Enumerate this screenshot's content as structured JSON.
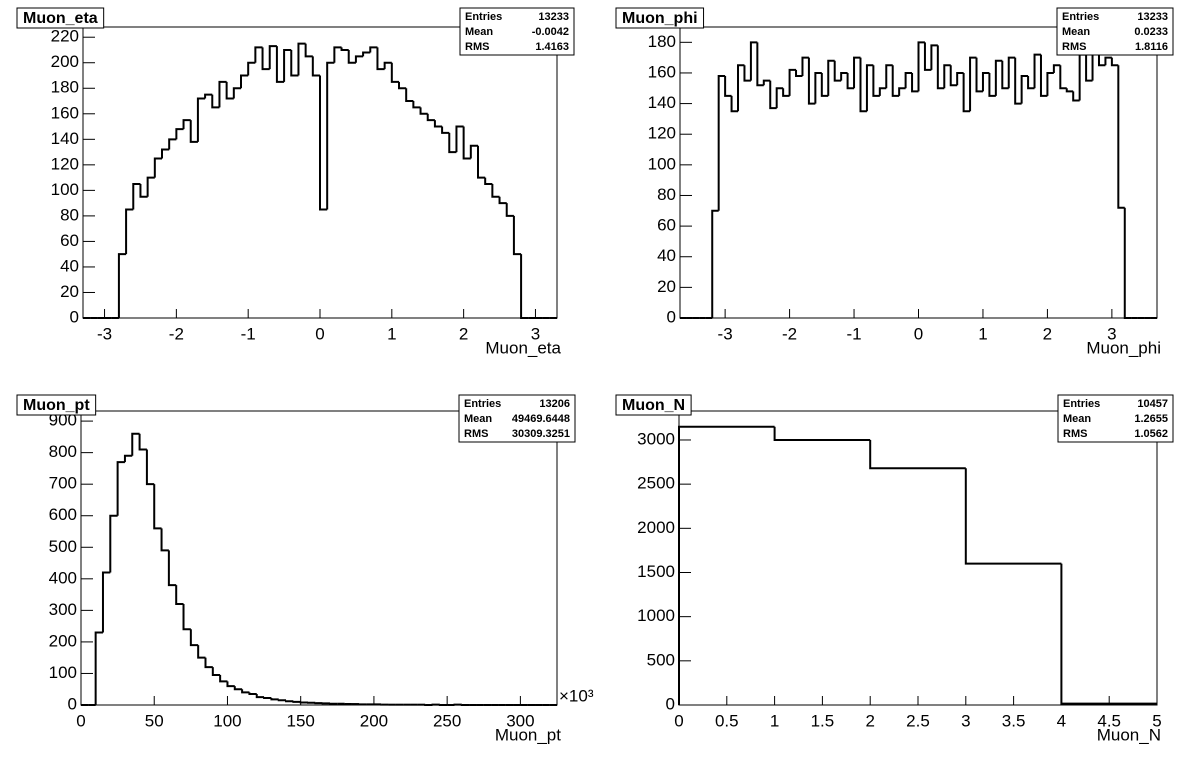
{
  "chart_data": [
    {
      "type": "histogram",
      "title": "Muon_eta",
      "x_label": "Muon_eta",
      "color": "#000000",
      "stats": [
        {
          "label": "Entries",
          "value": 13233
        },
        {
          "label": "Mean",
          "value": -0.0042
        },
        {
          "label": "RMS",
          "value": 1.4163
        }
      ],
      "xlim": [
        -3.3,
        3.3
      ],
      "ylim": [
        0,
        228
      ],
      "xticks": [
        -3,
        -2,
        -1,
        0,
        1,
        2,
        3
      ],
      "yticks": [
        0,
        20,
        40,
        60,
        80,
        100,
        120,
        140,
        160,
        180,
        200,
        220
      ],
      "bins": [
        -3.3,
        -3.2,
        -3.1,
        -3.0,
        -2.9,
        -2.8,
        -2.7,
        -2.6,
        -2.5,
        -2.4,
        -2.3,
        -2.2,
        -2.1,
        -2.0,
        -1.9,
        -1.8,
        -1.7,
        -1.6,
        -1.5,
        -1.4,
        -1.3,
        -1.2,
        -1.1,
        -1.0,
        -0.9,
        -0.8,
        -0.7,
        -0.6,
        -0.5,
        -0.4,
        -0.3,
        -0.2,
        -0.1,
        0.0,
        0.1,
        0.2,
        0.3,
        0.4,
        0.5,
        0.6,
        0.7,
        0.8,
        0.9,
        1.0,
        1.1,
        1.2,
        1.3,
        1.4,
        1.5,
        1.6,
        1.7,
        1.8,
        1.9,
        2.0,
        2.1,
        2.2,
        2.3,
        2.4,
        2.5,
        2.6,
        2.7,
        2.8,
        2.9,
        3.0,
        3.1,
        3.2,
        3.3
      ],
      "values": [
        0,
        0,
        0,
        0,
        0,
        50,
        85,
        105,
        95,
        110,
        125,
        132,
        140,
        148,
        155,
        138,
        172,
        175,
        165,
        185,
        172,
        180,
        190,
        200,
        212,
        195,
        213,
        185,
        210,
        190,
        215,
        205,
        190,
        85,
        200,
        212,
        210,
        200,
        205,
        208,
        212,
        195,
        200,
        185,
        180,
        170,
        165,
        160,
        155,
        150,
        145,
        130,
        150,
        125,
        135,
        110,
        105,
        95,
        90,
        80,
        50,
        0,
        0,
        0,
        0,
        0
      ]
    },
    {
      "type": "histogram",
      "title": "Muon_phi",
      "x_label": "Muon_phi",
      "color": "#000000",
      "stats": [
        {
          "label": "Entries",
          "value": 13233
        },
        {
          "label": "Mean",
          "value": 0.0233
        },
        {
          "label": "RMS",
          "value": 1.8116
        }
      ],
      "xlim": [
        -3.7,
        3.7
      ],
      "ylim": [
        0,
        190
      ],
      "xticks": [
        -3,
        -2,
        -1,
        0,
        1,
        2,
        3
      ],
      "yticks": [
        0,
        20,
        40,
        60,
        80,
        100,
        120,
        140,
        160,
        180
      ],
      "bins": [
        -3.7,
        -3.6,
        -3.5,
        -3.4,
        -3.3,
        -3.2,
        -3.1,
        -3.0,
        -2.9,
        -2.8,
        -2.7,
        -2.6,
        -2.5,
        -2.4,
        -2.3,
        -2.2,
        -2.1,
        -2.0,
        -1.9,
        -1.8,
        -1.7,
        -1.6,
        -1.5,
        -1.4,
        -1.3,
        -1.2,
        -1.1,
        -1.0,
        -0.9,
        -0.8,
        -0.7,
        -0.6,
        -0.5,
        -0.4,
        -0.3,
        -0.2,
        -0.1,
        0.0,
        0.1,
        0.2,
        0.3,
        0.4,
        0.5,
        0.6,
        0.7,
        0.8,
        0.9,
        1.0,
        1.1,
        1.2,
        1.3,
        1.4,
        1.5,
        1.6,
        1.7,
        1.8,
        1.9,
        2.0,
        2.1,
        2.2,
        2.3,
        2.4,
        2.5,
        2.6,
        2.7,
        2.8,
        2.9,
        3.0,
        3.1,
        3.2,
        3.3,
        3.4,
        3.5,
        3.6,
        3.7
      ],
      "values": [
        0,
        0,
        0,
        0,
        0,
        70,
        158,
        145,
        135,
        165,
        155,
        180,
        152,
        155,
        137,
        150,
        145,
        162,
        158,
        170,
        140,
        160,
        145,
        168,
        155,
        160,
        150,
        170,
        135,
        165,
        145,
        150,
        165,
        145,
        150,
        160,
        148,
        180,
        162,
        178,
        150,
        165,
        152,
        160,
        135,
        170,
        148,
        160,
        145,
        168,
        150,
        170,
        140,
        158,
        150,
        172,
        145,
        160,
        165,
        150,
        148,
        142,
        172,
        155,
        178,
        165,
        170,
        165,
        72,
        0,
        0,
        0,
        0,
        0
      ]
    },
    {
      "type": "histogram",
      "title": "Muon_pt",
      "x_label": "Muon_pt",
      "x_multiplier": "×10³",
      "color": "#000000",
      "stats": [
        {
          "label": "Entries",
          "value": 13206
        },
        {
          "label": "Mean",
          "value": 49469.6448
        },
        {
          "label": "RMS",
          "value": 30309.3251
        }
      ],
      "xlim": [
        0,
        325
      ],
      "ylim": [
        0,
        932
      ],
      "xticks": [
        0,
        50,
        100,
        150,
        200,
        250,
        300
      ],
      "yticks": [
        0,
        100,
        200,
        300,
        400,
        500,
        600,
        700,
        800,
        900
      ],
      "bins": [
        0,
        5,
        10,
        15,
        20,
        25,
        30,
        35,
        40,
        45,
        50,
        55,
        60,
        65,
        70,
        75,
        80,
        85,
        90,
        95,
        100,
        105,
        110,
        115,
        120,
        125,
        130,
        135,
        140,
        145,
        150,
        155,
        160,
        165,
        170,
        175,
        180,
        185,
        190,
        195,
        200,
        205,
        210,
        215,
        220,
        225,
        230,
        235,
        240,
        245,
        250,
        255,
        260,
        265,
        270,
        275,
        280,
        285,
        290,
        295,
        300,
        305,
        310,
        315,
        320,
        325
      ],
      "values": [
        0,
        0,
        230,
        420,
        600,
        770,
        790,
        860,
        810,
        700,
        560,
        490,
        380,
        320,
        240,
        190,
        150,
        120,
        95,
        75,
        60,
        50,
        40,
        35,
        25,
        22,
        18,
        15,
        12,
        10,
        8,
        7,
        6,
        5,
        4,
        4,
        3,
        3,
        2,
        2,
        2,
        1,
        1,
        1,
        1,
        1,
        1,
        0,
        1,
        0,
        0,
        1,
        0,
        0,
        0,
        0,
        0,
        0,
        0,
        0,
        0,
        0,
        0,
        0,
        0
      ]
    },
    {
      "type": "histogram",
      "title": "Muon_N",
      "x_label": "Muon_N",
      "color": "#000000",
      "stats": [
        {
          "label": "Entries",
          "value": 10457
        },
        {
          "label": "Mean",
          "value": 1.2655
        },
        {
          "label": "RMS",
          "value": 1.0562
        }
      ],
      "xlim": [
        0,
        5
      ],
      "ylim": [
        0,
        3328
      ],
      "xticks": [
        0,
        0.5,
        1,
        1.5,
        2,
        2.5,
        3,
        3.5,
        4,
        4.5,
        5
      ],
      "yticks": [
        0,
        500,
        1000,
        1500,
        2000,
        2500,
        3000
      ],
      "bins": [
        0,
        1,
        2,
        3,
        4,
        5
      ],
      "values": [
        3150,
        3000,
        2680,
        1600,
        15
      ]
    }
  ]
}
